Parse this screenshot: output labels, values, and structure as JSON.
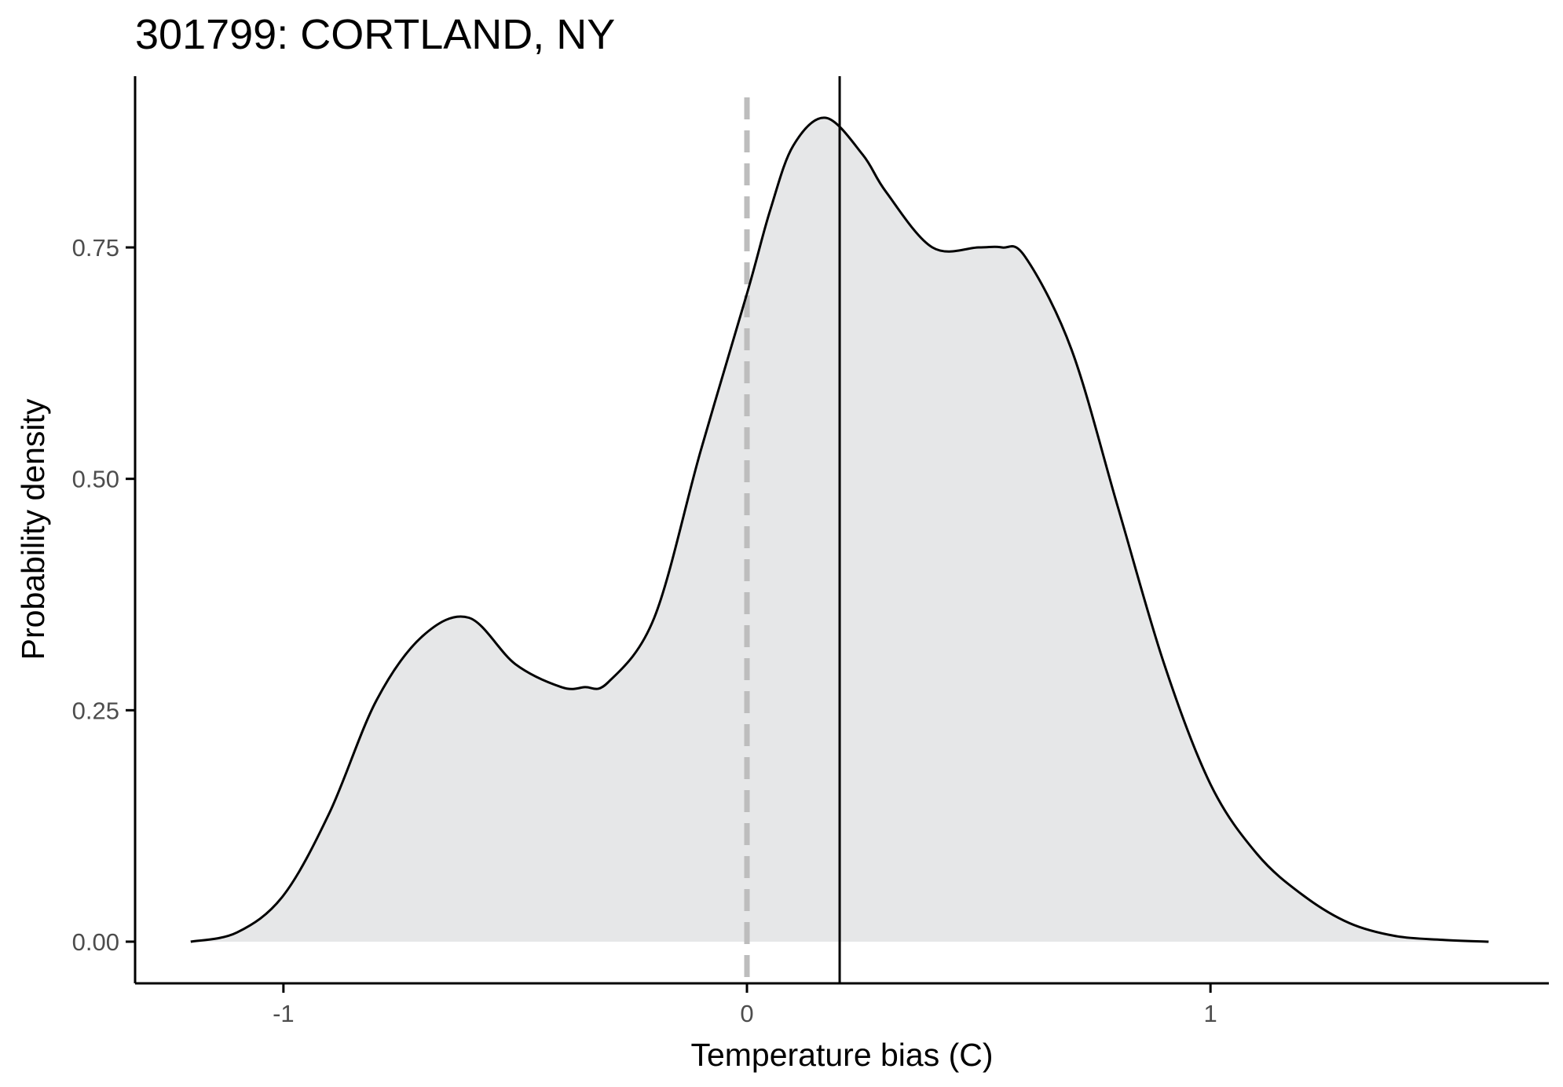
{
  "chart_data": {
    "type": "area",
    "title": "301799: CORTLAND, NY",
    "xlabel": "Temperature bias (C)",
    "ylabel": "Probability density",
    "xlim": [
      -1.32,
      1.73
    ],
    "ylim": [
      -0.045,
      0.935
    ],
    "x_ticks": [
      -1,
      0,
      1
    ],
    "x_tick_labels": [
      "-1",
      "0",
      "1"
    ],
    "y_ticks": [
      0,
      0.25,
      0.5,
      0.75
    ],
    "y_tick_labels": [
      "0.00",
      "0.25",
      "0.50",
      "0.75"
    ],
    "grid": false,
    "legend": "none",
    "series": [
      {
        "x": [
          -1.2,
          -1.1,
          -1.0,
          -0.9,
          -0.8,
          -0.7,
          -0.6,
          -0.5,
          -0.4,
          -0.35,
          -0.3,
          -0.2,
          -0.1,
          0.0,
          0.05,
          0.1,
          0.17,
          0.25,
          0.3,
          0.4,
          0.5,
          0.55,
          0.6,
          0.7,
          0.8,
          0.9,
          1.0,
          1.1,
          1.2,
          1.3,
          1.4,
          1.5,
          1.6
        ],
        "y": [
          0.0,
          0.01,
          0.05,
          0.14,
          0.26,
          0.33,
          0.35,
          0.3,
          0.275,
          0.275,
          0.28,
          0.35,
          0.53,
          0.7,
          0.79,
          0.86,
          0.89,
          0.85,
          0.81,
          0.75,
          0.75,
          0.75,
          0.74,
          0.64,
          0.47,
          0.3,
          0.17,
          0.095,
          0.05,
          0.02,
          0.006,
          0.002,
          0.0
        ]
      }
    ],
    "vlines": [
      {
        "x": 0.0,
        "style": "dashed",
        "color": "#bdbdbd"
      },
      {
        "x": 0.2,
        "style": "solid",
        "color": "#000000"
      }
    ],
    "colors": {
      "fill": "#e6e7e8",
      "line": "#000000",
      "axis": "#000000",
      "tick_text": "#4d4d4d"
    }
  }
}
